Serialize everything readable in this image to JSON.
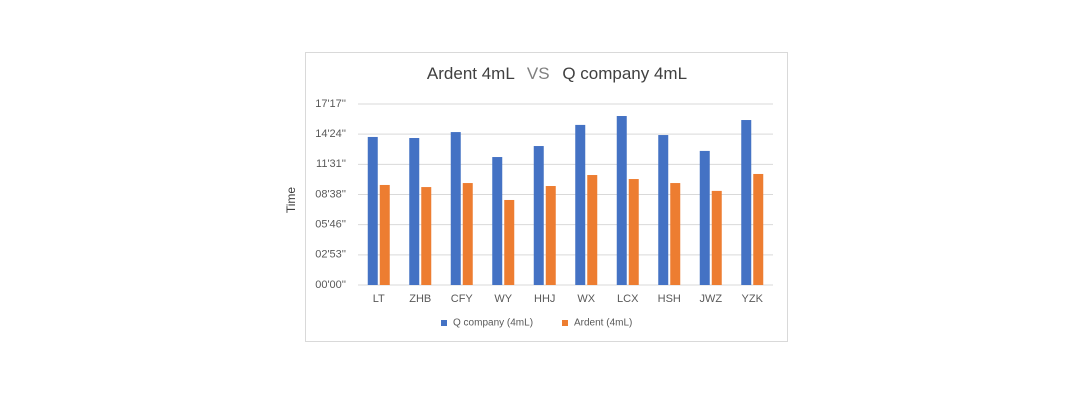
{
  "chart_data": {
    "type": "bar",
    "title": [
      "Ardent 4mL",
      "VS",
      "Q company 4mL"
    ],
    "y_label": "Time",
    "categories": [
      "LT",
      "ZHB",
      "CFY",
      "WY",
      "HHJ",
      "WX",
      "LCX",
      "HSH",
      "JWZ",
      "YZK"
    ],
    "series": [
      {
        "name": "Q company (4mL)",
        "color": "#4472c4",
        "values": [
          848,
          842,
          876,
          733,
          796,
          917,
          968,
          859,
          768,
          945
        ]
      },
      {
        "name": "Ardent (4mL)",
        "color": "#ed7d31",
        "values": [
          573,
          561,
          584,
          487,
          567,
          630,
          607,
          584,
          539,
          636
        ]
      }
    ],
    "ylim": [
      0,
      1036.8
    ],
    "yticks": [
      {
        "value": 0,
        "label": "00'00''"
      },
      {
        "value": 172.8,
        "label": "02'53''"
      },
      {
        "value": 345.6,
        "label": "05'46''"
      },
      {
        "value": 518.4,
        "label": "08'38''"
      },
      {
        "value": 691.2,
        "label": "11'31''"
      },
      {
        "value": 864,
        "label": "14'24''"
      },
      {
        "value": 1036.8,
        "label": "17'17''"
      }
    ],
    "grid": true,
    "legend": "bottom"
  }
}
